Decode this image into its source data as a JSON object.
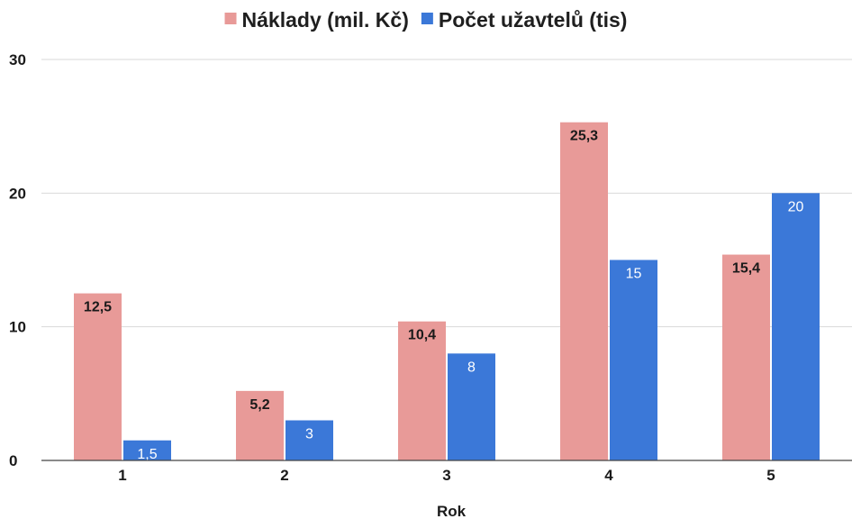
{
  "chart_data": {
    "type": "bar",
    "title": "",
    "xlabel": "Rok",
    "ylabel": "",
    "categories": [
      "1",
      "2",
      "3",
      "4",
      "5"
    ],
    "ylim": [
      0,
      30
    ],
    "yticks": [
      0,
      10,
      20,
      30
    ],
    "ytick_labels": [
      "0",
      "10",
      "20",
      "30"
    ],
    "grid": true,
    "legend_position": "top",
    "series": [
      {
        "name": "Náklady (mil. Kč)",
        "color": "#e89a98",
        "label_color": "#1a1a1a",
        "values": [
          12.5,
          5.2,
          10.4,
          25.3,
          15.4
        ],
        "labels": [
          "12,5",
          "5,2",
          "10,4",
          "25,3",
          "15,4"
        ]
      },
      {
        "name": "Počet užavtelů (tis)",
        "color": "#3b78d8",
        "label_color": "#ffffff",
        "values": [
          1.5,
          3,
          8,
          15,
          20
        ],
        "labels": [
          "1,5",
          "3",
          "8",
          "15",
          "20"
        ]
      }
    ]
  }
}
